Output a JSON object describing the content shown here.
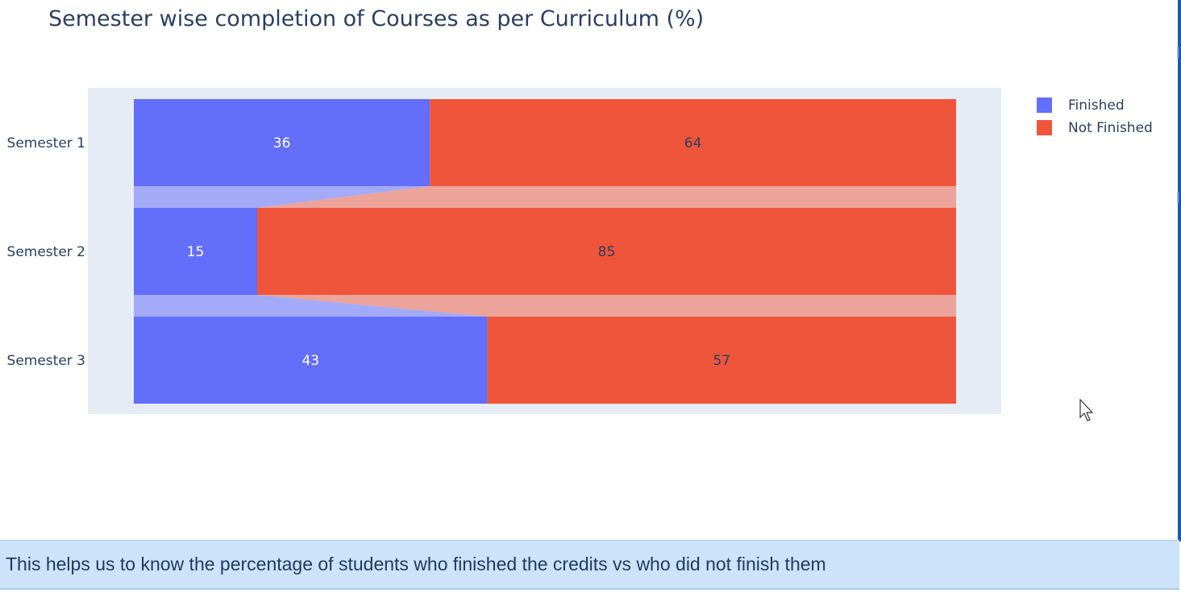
{
  "title": "Semester wise completion of Courses as per Curriculum (%)",
  "legend": [
    {
      "label": "Finished",
      "color": "#636efa"
    },
    {
      "label": "Not Finished",
      "color": "#ef553b"
    }
  ],
  "note": "This helps us to know the percentage of students who finished the credits vs who did not finish them",
  "colors": {
    "plot_bg": "#e5ecf6",
    "finished": "#636efa",
    "not_finished": "#ef553b",
    "finished_connector": "#a3aaf7",
    "not_finished_connector": "#eba39a",
    "text_dark": "#2a3f5f"
  },
  "chart_data": {
    "type": "bar",
    "orientation": "horizontal",
    "barmode": "stack",
    "categories": [
      "Semester 1",
      "Semester 2",
      "Semester 3"
    ],
    "series": [
      {
        "name": "Finished",
        "values": [
          36,
          15,
          43
        ]
      },
      {
        "name": "Not Finished",
        "values": [
          64,
          85,
          57
        ]
      }
    ],
    "title": "Semester wise completion of Courses as per Curriculum (%)",
    "xlabel": "",
    "ylabel": "",
    "xlim": [
      0,
      100
    ],
    "grid": false,
    "legend_position": "top-right"
  }
}
